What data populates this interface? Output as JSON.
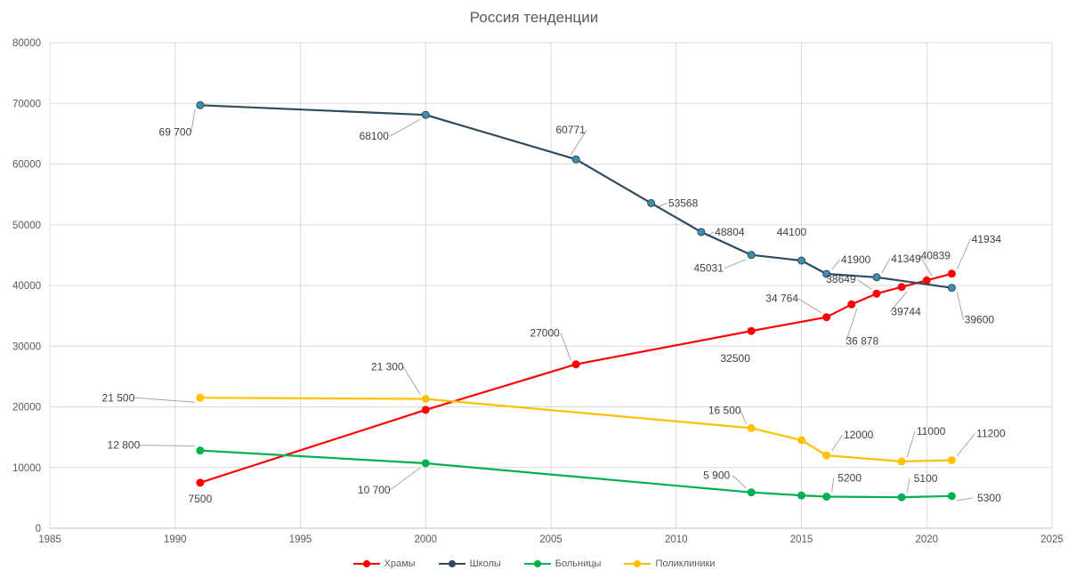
{
  "chart_data": {
    "type": "line",
    "title": "Россия тенденции",
    "xlabel": "",
    "ylabel": "",
    "xlim": [
      1985,
      2025
    ],
    "ylim": [
      0,
      80000
    ],
    "x_ticks": [
      "1985",
      "1990",
      "1995",
      "2000",
      "2005",
      "2010",
      "2015",
      "2020",
      "2025"
    ],
    "y_ticks": [
      "0",
      "10000",
      "20000",
      "30000",
      "40000",
      "50000",
      "60000",
      "70000",
      "80000"
    ],
    "grid": "vertical and horizontal",
    "legend_position": "bottom",
    "series": [
      {
        "name": "Храмы",
        "color": "#ff0000",
        "points": [
          {
            "x": 1991,
            "y": 7500,
            "label": "7500"
          },
          {
            "x": 2000,
            "y": 19500,
            "label": ""
          },
          {
            "x": 2006,
            "y": 27000,
            "label": "27000"
          },
          {
            "x": 2013,
            "y": 32500,
            "label": "32500"
          },
          {
            "x": 2016,
            "y": 34764,
            "label": "34 764"
          },
          {
            "x": 2017,
            "y": 36878,
            "label": "36 878"
          },
          {
            "x": 2018,
            "y": 38649,
            "label": "38649"
          },
          {
            "x": 2019,
            "y": 39744,
            "label": "39744"
          },
          {
            "x": 2020,
            "y": 40839,
            "label": "40839"
          },
          {
            "x": 2021,
            "y": 41934,
            "label": "41934"
          }
        ]
      },
      {
        "name": "Школы",
        "color": "#2e4a5b",
        "marker": "#3e8fae",
        "points": [
          {
            "x": 1991,
            "y": 69700,
            "label": "69 700"
          },
          {
            "x": 2000,
            "y": 68100,
            "label": "68100"
          },
          {
            "x": 2006,
            "y": 60771,
            "label": "60771"
          },
          {
            "x": 2009,
            "y": 53568,
            "label": "53568"
          },
          {
            "x": 2011,
            "y": 48804,
            "label": "48804"
          },
          {
            "x": 2013,
            "y": 45031,
            "label": "45031"
          },
          {
            "x": 2015,
            "y": 44100,
            "label": "44100"
          },
          {
            "x": 2016,
            "y": 41900,
            "label": "41900"
          },
          {
            "x": 2018,
            "y": 41349,
            "label": "41349"
          },
          {
            "x": 2021,
            "y": 39600,
            "label": "39600"
          }
        ]
      },
      {
        "name": "Больницы",
        "color": "#00b050",
        "points": [
          {
            "x": 1991,
            "y": 12800,
            "label": "12 800"
          },
          {
            "x": 2000,
            "y": 10700,
            "label": "10 700"
          },
          {
            "x": 2013,
            "y": 5900,
            "label": "5 900"
          },
          {
            "x": 2015,
            "y": 5400,
            "label": ""
          },
          {
            "x": 2016,
            "y": 5200,
            "label": "5200"
          },
          {
            "x": 2019,
            "y": 5100,
            "label": "5100"
          },
          {
            "x": 2021,
            "y": 5300,
            "label": "5300"
          }
        ]
      },
      {
        "name": "Поликлиники",
        "color": "#ffc000",
        "points": [
          {
            "x": 1991,
            "y": 21500,
            "label": "21 500"
          },
          {
            "x": 2000,
            "y": 21300,
            "label": "21 300"
          },
          {
            "x": 2013,
            "y": 16500,
            "label": "16 500"
          },
          {
            "x": 2015,
            "y": 14500,
            "label": ""
          },
          {
            "x": 2016,
            "y": 12000,
            "label": "12000"
          },
          {
            "x": 2019,
            "y": 11000,
            "label": "11000"
          },
          {
            "x": 2021,
            "y": 11200,
            "label": "11200"
          }
        ]
      }
    ]
  }
}
